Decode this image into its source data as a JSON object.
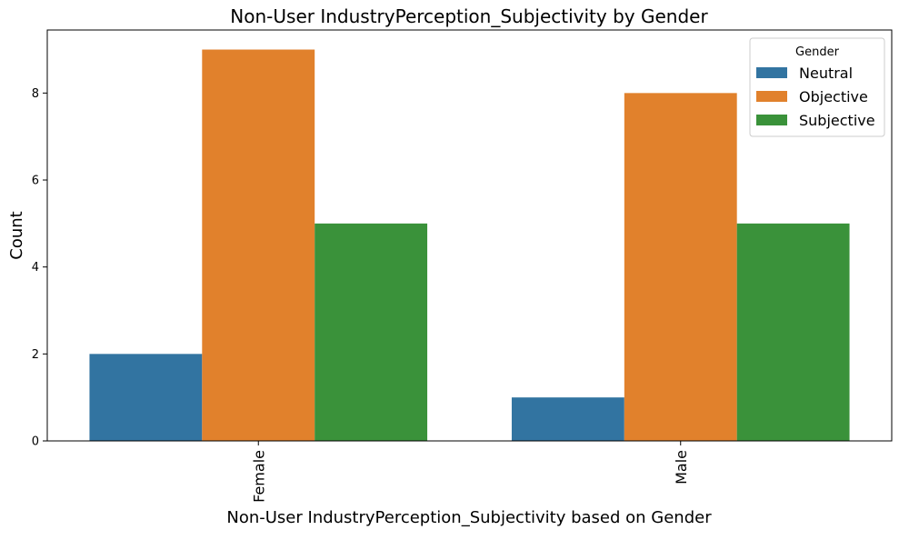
{
  "chart_data": {
    "type": "bar",
    "title": "Non-User IndustryPerception_Subjectivity by Gender",
    "xlabel": "Non-User IndustryPerception_Subjectivity based on Gender",
    "ylabel": "Count",
    "categories": [
      "Female",
      "Male"
    ],
    "series": [
      {
        "name": "Neutral",
        "values": [
          2,
          1
        ],
        "color": "#3274a1"
      },
      {
        "name": "Objective",
        "values": [
          9,
          8
        ],
        "color": "#e1812c"
      },
      {
        "name": "Subjective",
        "values": [
          5,
          5
        ],
        "color": "#3a923a"
      }
    ],
    "ylim": [
      0,
      9.45
    ],
    "yticks": [
      0,
      2,
      4,
      6,
      8
    ],
    "grid": false,
    "legend": {
      "title": "Gender",
      "placement": "top-right"
    }
  }
}
